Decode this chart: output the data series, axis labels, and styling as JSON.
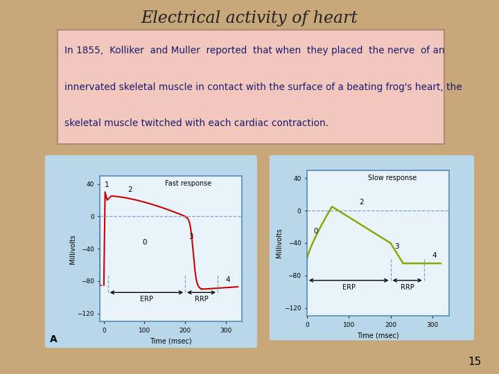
{
  "title": "Electrical activity of heart",
  "title_fontsize": 17,
  "title_color": "#222222",
  "slide_bg": "#c8a87a",
  "text_box_bg": "#f2c8be",
  "text_box_border": "#b08878",
  "body_lines": [
    "In 1855,  Kolliker  and Muller  reported  that when  they placed  the nerve  of an",
    "innervated skeletal muscle in contact with the surface of a beating frog's heart, the",
    "skeletal muscle twitched with each cardiac contraction."
  ],
  "body_text_color": "#1a1a6e",
  "body_fontsize": 9.8,
  "outer_panel_bg": "#b8d8ea",
  "chart_bg": "#e8f4fa",
  "chart_border_color": "#5588bb",
  "fast_color": "#cc0000",
  "slow_color": "#88aa00",
  "dashed_line_color": "#7799bb",
  "xlabel": "Time (msec)",
  "ylabel": "Millivolts",
  "yticks": [
    40,
    0,
    -40,
    -80,
    -120
  ],
  "xticks": [
    0,
    100,
    200,
    300
  ],
  "fast_title": "Fast response",
  "slow_title": "Slow response",
  "erp_label": "ERP",
  "rrp_label": "RRP",
  "panel_a_label": "A",
  "page_number": "15",
  "ylim": [
    -130,
    50
  ],
  "xlim": [
    -10,
    340
  ]
}
